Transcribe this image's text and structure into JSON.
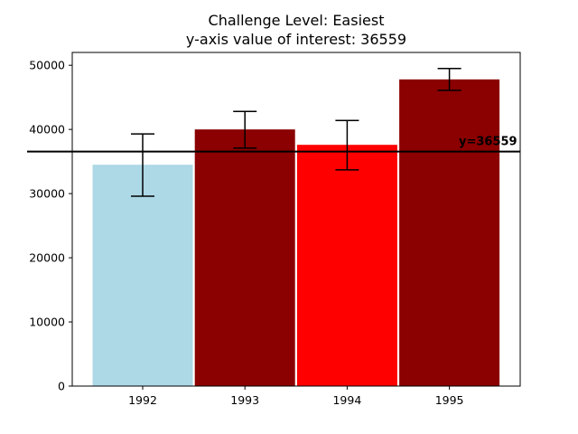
{
  "chart_data": {
    "type": "bar",
    "title": "Challenge Level: Easiest",
    "subtitle": "y-axis value of interest: 36559",
    "categories": [
      "1992",
      "1993",
      "1994",
      "1995"
    ],
    "values": [
      34500,
      40000,
      37600,
      47800
    ],
    "errors": [
      {
        "low": 29600,
        "high": 39300
      },
      {
        "low": 37100,
        "high": 42800
      },
      {
        "low": 33700,
        "high": 41400
      },
      {
        "low": 46100,
        "high": 49500
      }
    ],
    "colors": [
      "#add8e6",
      "#8b0000",
      "#ff0000",
      "#8b0000"
    ],
    "ylim": [
      0,
      52000
    ],
    "yticks": [
      "0",
      "10000",
      "20000",
      "30000",
      "40000",
      "50000"
    ],
    "reference_line": {
      "value": 36559,
      "label": "y=36559"
    },
    "xlabel": "",
    "ylabel": "",
    "grid": false,
    "legend": "none"
  }
}
